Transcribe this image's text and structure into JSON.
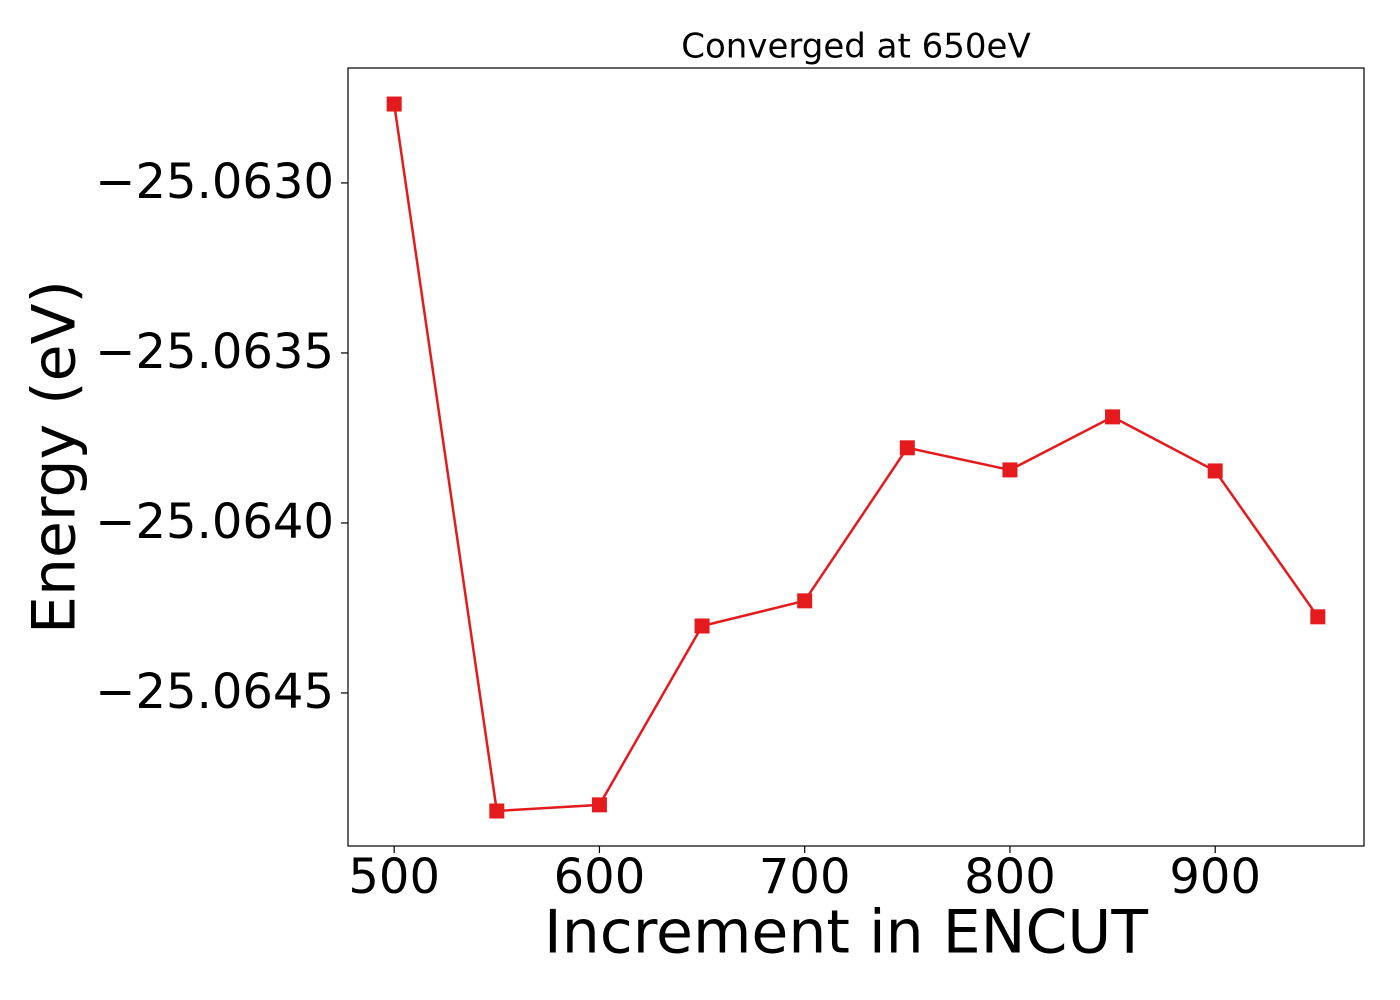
{
  "chart_data": {
    "type": "line",
    "title": "Converged at 650eV",
    "x_label": "Increment in ENCUT",
    "y_label": "Energy (eV)",
    "x": [
      500,
      550,
      600,
      650,
      700,
      750,
      800,
      850,
      900,
      950
    ],
    "values": [
      -25.062768,
      -25.064847,
      -25.064829,
      -25.064303,
      -25.064229,
      -25.063779,
      -25.063844,
      -25.063688,
      -25.063847,
      -25.064276
    ],
    "color": "#e41a1c",
    "marker": "square",
    "xlim": [
      477.5,
      972.5
    ],
    "ylim": [
      -25.06495,
      -25.062662
    ],
    "xticks": [
      500,
      600,
      700,
      800,
      900
    ],
    "yticks": [
      {
        "value": -25.063,
        "label": "−25.0630"
      },
      {
        "value": -25.0635,
        "label": "−25.0635"
      },
      {
        "value": -25.064,
        "label": "−25.0640"
      },
      {
        "value": -25.0645,
        "label": "−25.0645"
      }
    ],
    "grid": false
  }
}
